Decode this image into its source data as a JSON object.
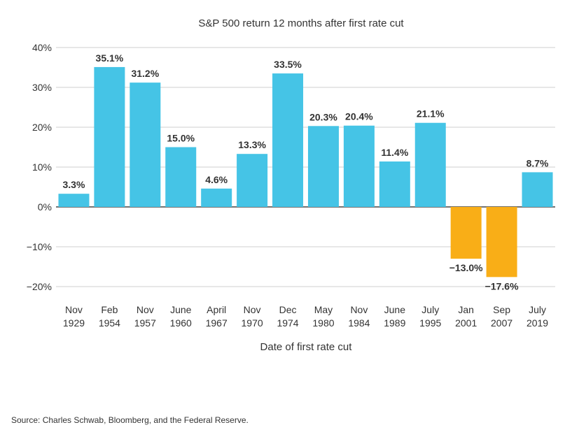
{
  "chart_data": {
    "type": "bar",
    "title": "S&P 500 return 12 months after first rate cut",
    "xlabel": "Date of first rate cut",
    "ylabel": "",
    "categories": [
      [
        "Nov",
        "1929"
      ],
      [
        "Feb",
        "1954"
      ],
      [
        "Nov",
        "1957"
      ],
      [
        "June",
        "1960"
      ],
      [
        "April",
        "1967"
      ],
      [
        "Nov",
        "1970"
      ],
      [
        "Dec",
        "1974"
      ],
      [
        "May",
        "1980"
      ],
      [
        "Nov",
        "1984"
      ],
      [
        "June",
        "1989"
      ],
      [
        "July",
        "1995"
      ],
      [
        "Jan",
        "2001"
      ],
      [
        "Sep",
        "2007"
      ],
      [
        "July",
        "2019"
      ]
    ],
    "values": [
      3.3,
      35.1,
      31.2,
      15.0,
      4.6,
      13.3,
      33.5,
      20.3,
      20.4,
      11.4,
      21.1,
      -13.0,
      -17.6,
      8.7
    ],
    "value_labels": [
      "3.3%",
      "35.1%",
      "31.2%",
      "15.0%",
      "4.6%",
      "13.3%",
      "33.5%",
      "20.3%",
      "20.4%",
      "11.4%",
      "21.1%",
      "−13.0%",
      "−17.6%",
      "8.7%"
    ],
    "ylim": [
      -20,
      40
    ],
    "yticks": [
      40,
      30,
      20,
      10,
      0,
      -10,
      -20
    ],
    "ytick_labels": [
      "40%",
      "30%",
      "20%",
      "10%",
      "0%",
      "−10%",
      "−20%"
    ],
    "grid": true,
    "legend": "none",
    "colors": {
      "positive": "#45C4E6",
      "negative": "#F9AE17",
      "grid": "#CFCFCF",
      "axis": "#444444",
      "text": "#333333"
    }
  },
  "source": "Source: Charles Schwab, Bloomberg, and the Federal Reserve."
}
